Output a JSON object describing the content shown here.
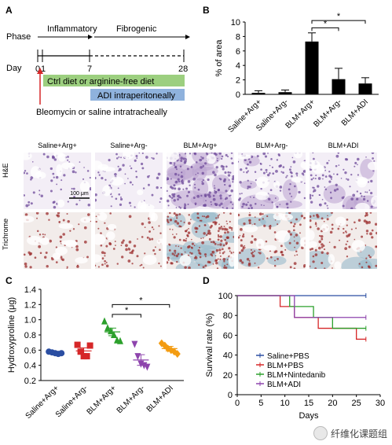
{
  "panels": {
    "a": "A",
    "b": "B",
    "c": "C",
    "d": "D"
  },
  "timeline": {
    "phase_label": "Phase",
    "day_label": "Day",
    "phase_inflammatory": "Inflammatory",
    "phase_fibrogenic": "Fibrogenic",
    "day_ticks": [
      "0",
      "1",
      "7",
      "28"
    ],
    "diet_bar": "Ctrl diet or arginine-free diet",
    "adi_bar": "ADI intraperitoneally",
    "injection": "Bleomycin or saline intratracheally",
    "colors": {
      "diet": "#9ccf7f",
      "adi": "#8fb2dd",
      "arrow": "#d62728"
    }
  },
  "histology": {
    "columns": [
      "Saline+Arg+",
      "Saline+Arg-",
      "BLM+Arg+",
      "BLM+Arg-",
      "BLM+ADI"
    ],
    "rows": [
      "H&E",
      "Trichrome"
    ],
    "scale_bar": "100 μm"
  },
  "chart_data": [
    {
      "panel": "B",
      "type": "bar",
      "ylabel": "% of area",
      "ylim": [
        0,
        10
      ],
      "yticks": [
        "0",
        "2",
        "4",
        "6",
        "8",
        "10"
      ],
      "categories": [
        "Saline+Arg+",
        "Saline+Arg-",
        "BLM+Arg+",
        "BLM+Arg-",
        "BLM+ADI"
      ],
      "values": [
        0.2,
        0.3,
        7.3,
        2.1,
        1.5
      ],
      "errors": [
        0.3,
        0.3,
        1.2,
        1.5,
        0.8
      ],
      "significance": [
        "*",
        "*"
      ],
      "bar_color": "#000000"
    },
    {
      "panel": "C",
      "type": "scatter",
      "ylabel": "Hydroxyproline (μg)",
      "ylim": [
        0.2,
        1.4
      ],
      "yticks": [
        "0.2",
        "0.4",
        "0.6",
        "0.8",
        "1.0",
        "1.2",
        "1.4"
      ],
      "categories": [
        "Saline+Arg+",
        "Saline+Arg-",
        "BLM+Arg+",
        "BLM+Arg-",
        "BLM+ADI"
      ],
      "groups": [
        {
          "marker": "circle",
          "color": "#2b4ea2",
          "points": [
            0.58,
            0.57,
            0.56,
            0.55,
            0.56
          ],
          "mean": 0.56,
          "err": 0.02
        },
        {
          "marker": "square",
          "color": "#d62728",
          "points": [
            0.67,
            0.58,
            0.52,
            0.52,
            0.66
          ],
          "mean": 0.59,
          "err": 0.04
        },
        {
          "marker": "triangle",
          "color": "#2ca02c",
          "points": [
            0.98,
            0.89,
            0.85,
            0.8,
            0.73,
            0.72
          ],
          "mean": 0.84,
          "err": 0.05
        },
        {
          "marker": "triangle-down",
          "color": "#8e44ad",
          "points": [
            0.68,
            0.52,
            0.42,
            0.4,
            0.38
          ],
          "mean": 0.47,
          "err": 0.07
        },
        {
          "marker": "diamond",
          "color": "#f39c12",
          "points": [
            0.69,
            0.66,
            0.62,
            0.6,
            0.58,
            0.55
          ],
          "mean": 0.62,
          "err": 0.03
        }
      ],
      "significance": [
        "*",
        "*"
      ]
    },
    {
      "panel": "D",
      "type": "line",
      "ylabel": "Survival rate (%)",
      "xlabel": "Days",
      "xlim": [
        0,
        30
      ],
      "ylim": [
        0,
        100
      ],
      "xticks": [
        "0",
        "5",
        "10",
        "15",
        "20",
        "25",
        "30"
      ],
      "yticks": [
        "0",
        "20",
        "40",
        "60",
        "80",
        "100"
      ],
      "series": [
        {
          "name": "Saline+PBS",
          "color": "#2b4ea2",
          "steps": [
            [
              0,
              100
            ],
            [
              27,
              100
            ]
          ]
        },
        {
          "name": "BLM+PBS",
          "color": "#d62728",
          "steps": [
            [
              0,
              100
            ],
            [
              9,
              100
            ],
            [
              9,
              89
            ],
            [
              12,
              89
            ],
            [
              12,
              78
            ],
            [
              17,
              78
            ],
            [
              17,
              67
            ],
            [
              25,
              67
            ],
            [
              25,
              56
            ],
            [
              27,
              56
            ]
          ]
        },
        {
          "name": "BLM+Nintedanib",
          "color": "#2ca02c",
          "steps": [
            [
              0,
              100
            ],
            [
              11,
              100
            ],
            [
              11,
              89
            ],
            [
              16,
              89
            ],
            [
              16,
              78
            ],
            [
              20,
              78
            ],
            [
              20,
              67
            ],
            [
              27,
              67
            ]
          ]
        },
        {
          "name": "BLM+ADI",
          "color": "#8e44ad",
          "steps": [
            [
              0,
              100
            ],
            [
              12,
              100
            ],
            [
              12,
              78
            ],
            [
              27,
              78
            ]
          ]
        }
      ]
    }
  ],
  "watermark": "纤维化课题组"
}
